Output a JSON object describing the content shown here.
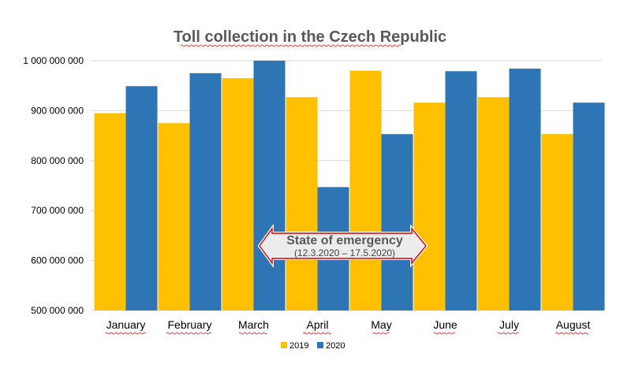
{
  "chart_data": {
    "type": "bar",
    "title": "Toll collection in the Czech Republic",
    "categories": [
      "January",
      "February",
      "March",
      "April",
      "May",
      "June",
      "July",
      "August"
    ],
    "series": [
      {
        "name": "2019",
        "color": "#FFC000",
        "values": [
          895000000,
          875000000,
          965000000,
          927000000,
          980000000,
          916000000,
          927000000,
          853000000
        ]
      },
      {
        "name": "2020",
        "color": "#2E75B6",
        "values": [
          949000000,
          975000000,
          1000000000,
          747000000,
          853000000,
          979000000,
          984000000,
          916000000
        ]
      }
    ],
    "ylim": [
      500000000,
      1000000000
    ],
    "yticks": [
      "500 000 000",
      "600 000 000",
      "700 000 000",
      "800 000 000",
      "900 000 000",
      "1 000 000 000"
    ],
    "grid": true,
    "legend_position": "bottom",
    "annotation": {
      "title": "State of emergency",
      "subtitle": "(12.3.2020 – 17.5.2020)",
      "arrow_color": "#E00000"
    }
  }
}
